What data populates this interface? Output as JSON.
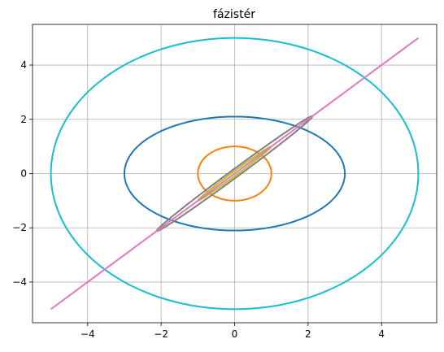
{
  "chart_data": {
    "type": "line",
    "title": "fázistér",
    "xlabel": "",
    "ylabel": "",
    "xlim": [
      -5.5,
      5.5
    ],
    "ylim": [
      -5.5,
      5.5
    ],
    "x_ticks": [
      -4,
      -2,
      0,
      2,
      4
    ],
    "y_ticks": [
      -4,
      -2,
      0,
      2,
      4
    ],
    "x_tick_labels": [
      "−4",
      "−2",
      "0",
      "2",
      "4"
    ],
    "y_tick_labels": [
      "−4",
      "−2",
      "0",
      "2",
      "4"
    ],
    "grid": true,
    "series": [
      {
        "kind": "ellipse",
        "cx": 0,
        "cy": 0,
        "rx": 3.0,
        "ry": 2.1,
        "color": "#1f77b4"
      },
      {
        "kind": "ellipse",
        "cx": 0,
        "cy": 0,
        "rx": 1.0,
        "ry": 1.0,
        "color": "#ff7f0e"
      },
      {
        "kind": "ellipse",
        "cx": 0,
        "cy": 0,
        "rx": 5.0,
        "ry": 5.0,
        "color": "#17becf"
      },
      {
        "kind": "tilted-ellipse",
        "cx": 0,
        "cy": 0,
        "semi_major": 3.0,
        "semi_minor": 0.13,
        "angle_deg": 45,
        "color": "#7f7f7f"
      },
      {
        "kind": "tilted-ellipse",
        "cx": 0,
        "cy": 0,
        "semi_major": 1.41,
        "semi_minor": 0.07,
        "angle_deg": 45,
        "color": "#bcbd22"
      },
      {
        "kind": "segment",
        "x": [
          -5,
          5
        ],
        "y": [
          -5,
          5
        ],
        "color": "#e377c2"
      }
    ]
  }
}
